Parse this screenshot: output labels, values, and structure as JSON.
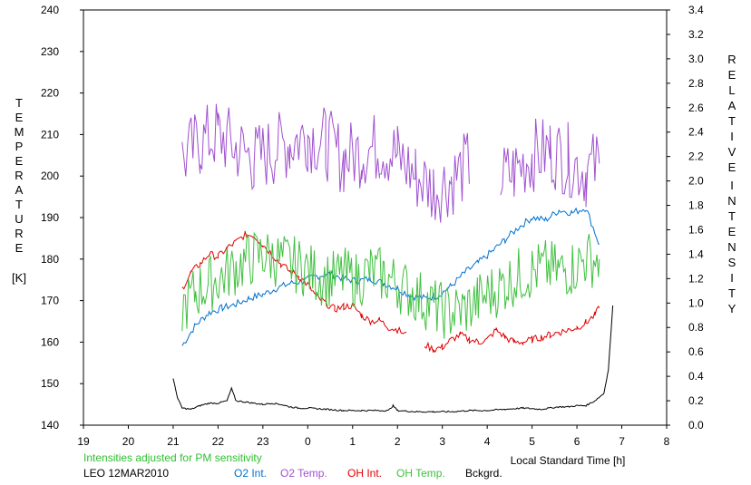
{
  "chart_data": {
    "type": "line",
    "left_axis": {
      "label_letters": [
        "T",
        "E",
        "M",
        "P",
        "E",
        "R",
        "A",
        "T",
        "U",
        "R",
        "E"
      ],
      "unit": "[K]",
      "ylim": [
        140,
        240
      ],
      "ticks": [
        "140",
        "150",
        "160",
        "170",
        "180",
        "190",
        "200",
        "210",
        "220",
        "230",
        "240"
      ]
    },
    "right_axis": {
      "label_word1": [
        "R",
        "E",
        "L",
        "A",
        "T",
        "I",
        "V",
        "E"
      ],
      "label_word2": [
        "I",
        "N",
        "T",
        "E",
        "N",
        "S",
        "I",
        "T",
        "Y"
      ],
      "ylim": [
        0.0,
        3.4
      ],
      "ticks": [
        "0.0",
        "0.2",
        "0.4",
        "0.6",
        "0.8",
        "1.0",
        "1.2",
        "1.4",
        "1.6",
        "1.8",
        "2.0",
        "2.2",
        "2.4",
        "2.6",
        "2.8",
        "3.0",
        "3.2",
        "3.4"
      ]
    },
    "x_axis": {
      "label": "Local Standard Time [h]",
      "xlim": [
        19,
        32
      ],
      "ticks": [
        "19",
        "20",
        "21",
        "22",
        "23",
        "0",
        "1",
        "2",
        "3",
        "4",
        "5",
        "6",
        "7",
        "8"
      ]
    },
    "note": "Intensities adjusted for PM sensitivity",
    "station": "LEO 12MAR2010",
    "grid": false,
    "series": [
      {
        "name": "O2 Int.",
        "axis": "right",
        "color": "#0070d0",
        "x": [
          21.2,
          21.5,
          21.8,
          22.1,
          22.4,
          22.7,
          23.0,
          23.3,
          23.6,
          23.9,
          24.2,
          24.5,
          24.8,
          25.1,
          25.4,
          25.7,
          26.0,
          26.3,
          26.6,
          26.9,
          27.2,
          27.5,
          27.8,
          28.1,
          28.4,
          28.7,
          29.0,
          29.3,
          29.6,
          29.9,
          30.2,
          30.5
        ],
        "y": [
          0.65,
          0.82,
          0.92,
          0.96,
          0.99,
          1.04,
          1.07,
          1.12,
          1.16,
          1.18,
          1.22,
          1.24,
          1.2,
          1.18,
          1.2,
          1.16,
          1.12,
          1.06,
          1.04,
          1.06,
          1.14,
          1.25,
          1.33,
          1.42,
          1.52,
          1.62,
          1.7,
          1.68,
          1.76,
          1.74,
          1.78,
          1.48
        ]
      },
      {
        "name": "O2 Temp.",
        "axis": "left",
        "color": "#a050d0",
        "x": [
          21.2,
          21.6,
          22.0,
          22.4,
          22.8,
          23.2,
          23.6,
          24.0,
          24.4,
          24.8,
          25.2,
          25.6,
          26.0,
          26.4,
          26.8,
          27.2,
          27.6,
          28.0,
          28.3,
          28.6,
          29.0,
          29.4,
          29.8,
          30.2,
          30.5
        ],
        "y": [
          204,
          208,
          210,
          207,
          204,
          206,
          208,
          210,
          208,
          204,
          206,
          207,
          205,
          200,
          197,
          199,
          203,
          null,
          199,
          201,
          205,
          206,
          204,
          201,
          203
        ]
      },
      {
        "name": "OH Int.",
        "axis": "right",
        "color": "#e00000",
        "x": [
          21.2,
          21.4,
          21.6,
          21.8,
          22.0,
          22.2,
          22.4,
          22.6,
          22.8,
          23.0,
          23.2,
          23.4,
          23.6,
          23.8,
          24.0,
          24.2,
          24.4,
          24.6,
          24.8,
          25.0,
          25.2,
          25.4,
          25.6,
          25.8,
          26.0,
          26.2,
          26.4,
          26.6,
          26.8,
          27.0,
          27.2,
          27.4,
          27.6,
          27.8,
          28.0,
          28.2,
          28.4,
          28.6,
          28.8,
          29.0,
          29.2,
          29.4,
          29.6,
          29.8,
          30.0,
          30.2,
          30.4,
          30.5
        ],
        "y": [
          1.12,
          1.25,
          1.32,
          1.4,
          1.38,
          1.45,
          1.5,
          1.56,
          1.55,
          1.48,
          1.4,
          1.32,
          1.26,
          1.22,
          1.15,
          1.05,
          1.0,
          0.95,
          0.97,
          0.98,
          0.9,
          0.85,
          0.86,
          0.8,
          0.78,
          0.74,
          null,
          0.66,
          0.62,
          0.64,
          0.7,
          0.74,
          0.7,
          0.68,
          0.7,
          0.78,
          0.72,
          0.68,
          0.68,
          0.7,
          0.72,
          0.74,
          0.76,
          0.78,
          0.8,
          0.84,
          0.9,
          0.96
        ]
      },
      {
        "name": "OH Temp.",
        "axis": "left",
        "color": "#40c040",
        "x": [
          21.2,
          21.5,
          21.8,
          22.1,
          22.4,
          22.7,
          23.0,
          23.3,
          23.6,
          23.9,
          24.2,
          24.5,
          24.8,
          25.1,
          25.4,
          25.7,
          26.0,
          26.3,
          26.6,
          26.9,
          27.2,
          27.5,
          27.8,
          28.1,
          28.4,
          28.7,
          29.0,
          29.3,
          29.6,
          29.9,
          30.2,
          30.5
        ],
        "y": [
          168,
          172,
          174,
          176,
          178,
          180,
          181,
          180,
          179,
          178,
          176,
          175,
          176,
          175,
          177,
          176,
          174,
          172,
          170,
          168,
          167,
          168,
          170,
          172,
          174,
          176,
          177,
          178,
          177,
          178,
          180,
          180
        ]
      },
      {
        "name": "Bckgrd.",
        "axis": "right",
        "color": "#000000",
        "x": [
          21.0,
          21.1,
          21.2,
          21.4,
          21.6,
          21.8,
          22.0,
          22.2,
          22.3,
          22.4,
          22.6,
          22.8,
          23.0,
          23.2,
          23.4,
          23.6,
          23.8,
          24.0,
          24.4,
          24.8,
          25.2,
          25.6,
          25.8,
          25.9,
          26.0,
          26.4,
          26.8,
          27.2,
          27.6,
          28.0,
          28.4,
          28.8,
          29.2,
          29.6,
          29.8,
          30.0,
          30.2,
          30.4,
          30.6,
          30.7,
          30.8
        ],
        "y": [
          0.38,
          0.22,
          0.14,
          0.13,
          0.16,
          0.18,
          0.18,
          0.2,
          0.3,
          0.2,
          0.19,
          0.18,
          0.17,
          0.18,
          0.17,
          0.15,
          0.14,
          0.14,
          0.13,
          0.12,
          0.12,
          0.12,
          0.12,
          0.16,
          0.12,
          0.11,
          0.11,
          0.11,
          0.12,
          0.12,
          0.13,
          0.14,
          0.13,
          0.15,
          0.15,
          0.16,
          0.16,
          0.2,
          0.26,
          0.45,
          0.98
        ]
      }
    ]
  }
}
